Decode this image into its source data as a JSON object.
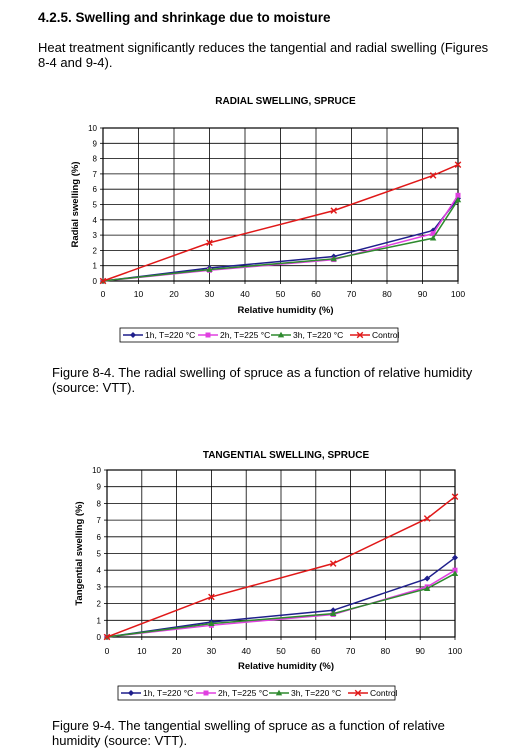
{
  "heading": "4.2.5. Swelling and shrinkage due to moisture",
  "intro": "Heat treatment significantly reduces the tangential and radial swelling (Figures 8-4 and 9-4).",
  "captions": [
    "Figure 8-4. The radial swelling of spruce as a function of relative humidity (source: VTT).",
    "Figure 9-4. The tangential swelling of spruce as a function of relative humidity (source: VTT)."
  ],
  "colors": {
    "1h": "#1f1f8c",
    "2h": "#e040e0",
    "3h": "#2e8a2e",
    "control": "#e01818",
    "grid": "#000000"
  },
  "chart_data": [
    {
      "type": "line",
      "title": "RADIAL SWELLING, SPRUCE",
      "xlabel": "Relative humidity (%)",
      "ylabel": "Radial swelling (%)",
      "xlim": [
        0,
        100
      ],
      "ylim": [
        0,
        10
      ],
      "xticks": [
        "0",
        "10",
        "20",
        "30",
        "40",
        "50",
        "60",
        "70",
        "80",
        "90",
        "100"
      ],
      "yticks": [
        "0",
        "1",
        "2",
        "3",
        "4",
        "5",
        "6",
        "7",
        "8",
        "9",
        "10"
      ],
      "grid": true,
      "legend_position": "bottom",
      "series": [
        {
          "name": "1h, T=220 °C",
          "color": "1h",
          "marker": "diamond",
          "x": [
            0,
            30,
            65,
            93,
            100
          ],
          "y": [
            0,
            0.85,
            1.6,
            3.3,
            5.4
          ]
        },
        {
          "name": "2h, T=225 °C",
          "color": "2h",
          "marker": "square",
          "x": [
            0,
            30,
            65,
            93,
            100
          ],
          "y": [
            0,
            0.7,
            1.4,
            3.1,
            5.6
          ]
        },
        {
          "name": "3h, T=220 °C",
          "color": "3h",
          "marker": "triangle",
          "x": [
            0,
            30,
            65,
            93,
            100
          ],
          "y": [
            0,
            0.75,
            1.45,
            2.8,
            5.3
          ]
        },
        {
          "name": "Control",
          "color": "control",
          "marker": "cross",
          "x": [
            0,
            30,
            65,
            93,
            100
          ],
          "y": [
            0,
            2.5,
            4.6,
            6.9,
            7.6
          ]
        }
      ]
    },
    {
      "type": "line",
      "title": "TANGENTIAL SWELLING, SPRUCE",
      "xlabel": "Relative humidity (%)",
      "ylabel": "Tangential swelling (%)",
      "xlim": [
        0,
        100
      ],
      "ylim": [
        0,
        10
      ],
      "xticks": [
        "0",
        "10",
        "20",
        "30",
        "40",
        "50",
        "60",
        "70",
        "80",
        "90",
        "100"
      ],
      "yticks": [
        "0",
        "1",
        "2",
        "3",
        "4",
        "5",
        "6",
        "7",
        "8",
        "9",
        "10"
      ],
      "grid": true,
      "legend_position": "bottom",
      "series": [
        {
          "name": "1h, T=220 °C",
          "color": "1h",
          "marker": "diamond",
          "x": [
            0,
            30,
            65,
            92,
            100
          ],
          "y": [
            0,
            0.9,
            1.6,
            3.5,
            4.75
          ]
        },
        {
          "name": "2h, T=225 °C",
          "color": "2h",
          "marker": "square",
          "x": [
            0,
            30,
            65,
            92,
            100
          ],
          "y": [
            0,
            0.7,
            1.35,
            3.0,
            4.0
          ]
        },
        {
          "name": "3h, T=220 °C",
          "color": "3h",
          "marker": "triangle",
          "x": [
            0,
            30,
            65,
            92,
            100
          ],
          "y": [
            0,
            0.8,
            1.4,
            2.9,
            3.8
          ]
        },
        {
          "name": "Control",
          "color": "control",
          "marker": "cross",
          "x": [
            0,
            30,
            65,
            92,
            100
          ],
          "y": [
            0,
            2.4,
            4.4,
            7.1,
            8.4
          ]
        }
      ]
    }
  ]
}
